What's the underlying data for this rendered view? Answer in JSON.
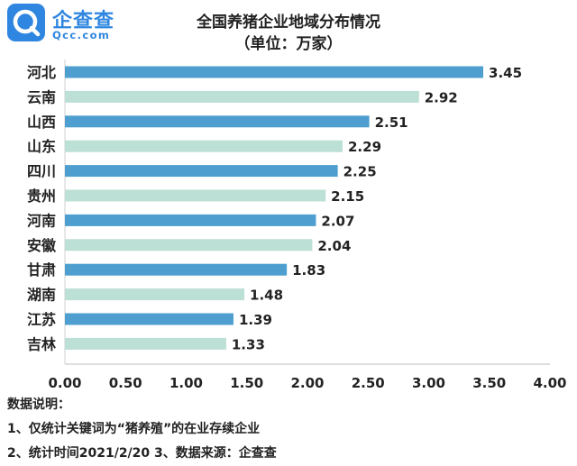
{
  "brand": {
    "name": "企查查",
    "url": "Qcc.com",
    "color": "#2f86e0"
  },
  "chart_data": {
    "type": "bar",
    "orientation": "horizontal",
    "title": "全国养猪企业地域分布情况",
    "subtitle": "（单位：万家）",
    "categories": [
      "河北",
      "云南",
      "山西",
      "山东",
      "四川",
      "贵州",
      "河南",
      "安徽",
      "甘肃",
      "湖南",
      "江苏",
      "吉林"
    ],
    "values": [
      3.45,
      2.92,
      2.51,
      2.29,
      2.25,
      2.15,
      2.07,
      2.04,
      1.83,
      1.48,
      1.39,
      1.33
    ],
    "value_labels": [
      "3.45",
      "2.92",
      "2.51",
      "2.29",
      "2.25",
      "2.15",
      "2.07",
      "2.04",
      "1.83",
      "1.48",
      "1.39",
      "1.33"
    ],
    "xlim": [
      0,
      4
    ],
    "x_ticks": [
      "0.00",
      "0.50",
      "1.00",
      "1.50",
      "2.00",
      "2.50",
      "3.00",
      "3.50",
      "4.00"
    ],
    "bar_colors": [
      "#4e9fcf",
      "#bcdfd6"
    ],
    "grid": false,
    "legend": "none"
  },
  "notes": {
    "heading": "数据说明：",
    "line1": "1、仅统计关键词为“猪养殖”的在业存续企业",
    "line2": "2、统计时间2021/2/20   3、数据来源：企查查"
  }
}
